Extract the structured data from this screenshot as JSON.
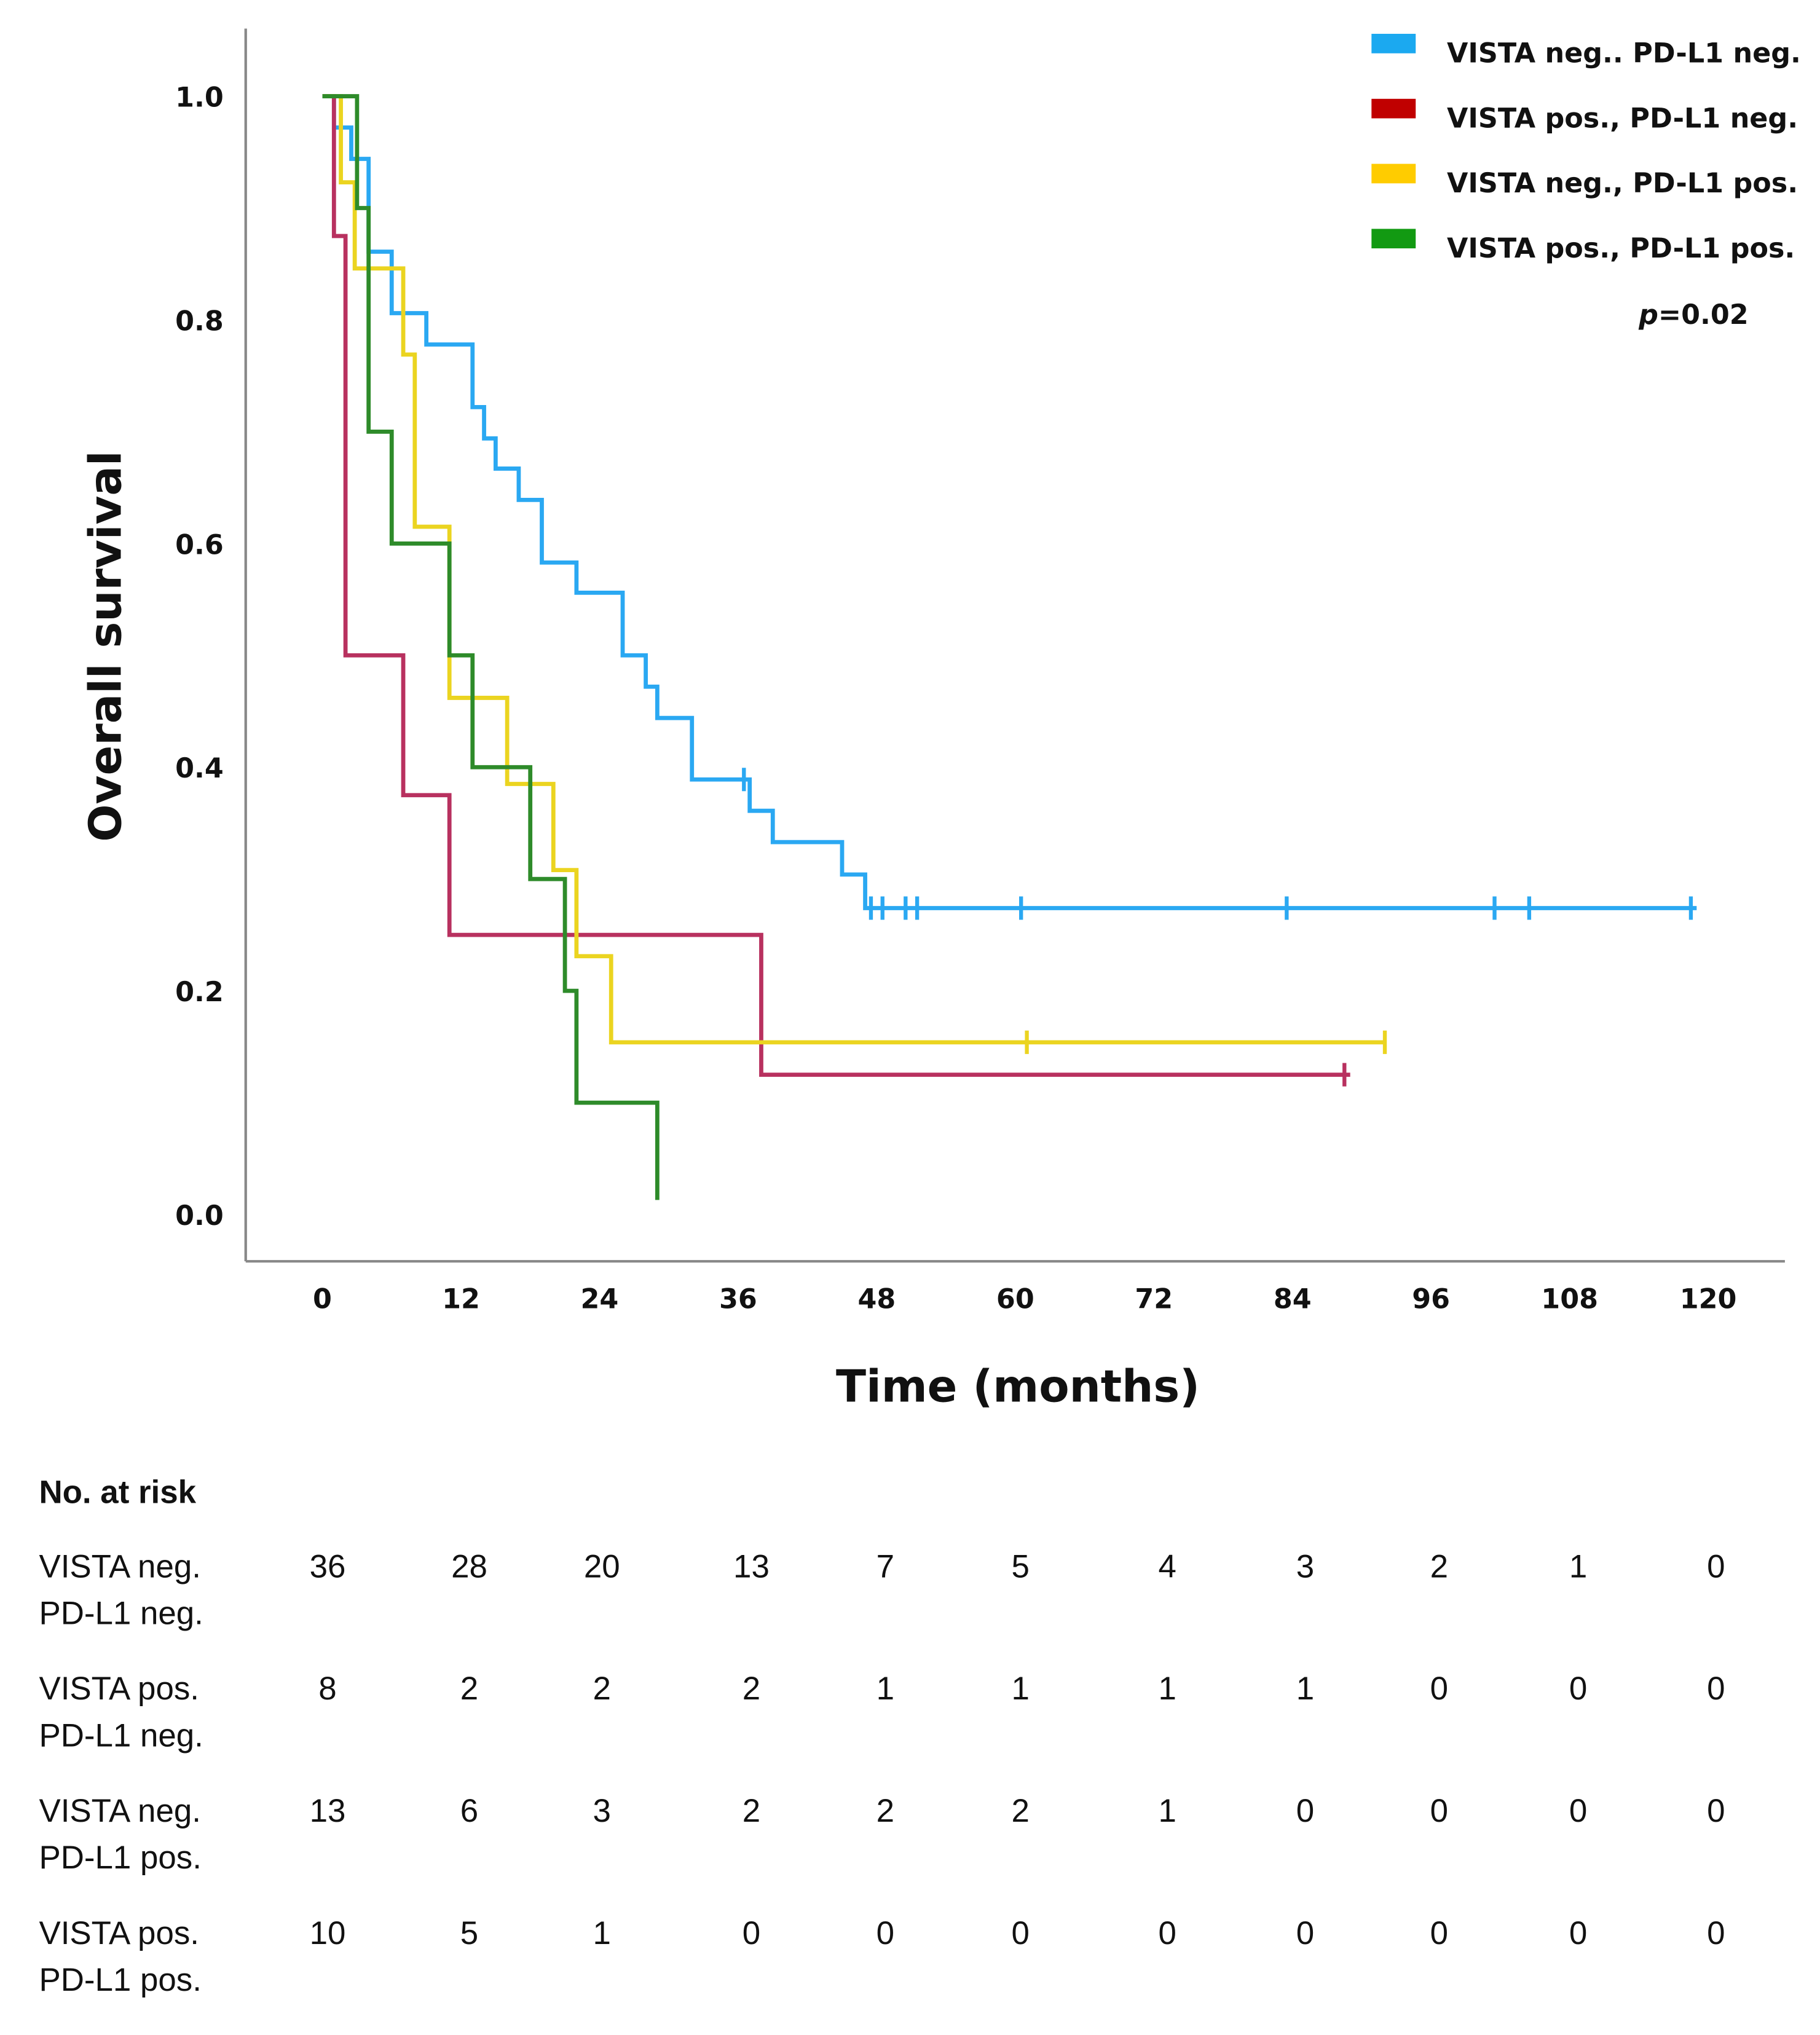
{
  "chart_data": {
    "type": "line",
    "subtype": "kaplan-meier",
    "title": "",
    "xlabel": "Time (months)",
    "ylabel": "Overall survival",
    "xlim": [
      0,
      120
    ],
    "ylim": [
      0,
      1.0
    ],
    "xticks": [
      "0",
      "12",
      "24",
      "36",
      "48",
      "60",
      "72",
      "84",
      "96",
      "108",
      "120"
    ],
    "xtick_values": [
      0,
      12,
      24,
      36,
      48,
      60,
      72,
      84,
      96,
      108,
      120
    ],
    "yticks": [
      "0.0",
      "0.2",
      "0.4",
      "0.6",
      "0.8",
      "1.0"
    ],
    "ytick_values": [
      0,
      0.2,
      0.4,
      0.6,
      0.8,
      1.0
    ],
    "grid": false,
    "legend_position": "top-right",
    "p_value_label": "p",
    "p_value_text": "=0.02",
    "series": [
      {
        "name": "VISTA neg.. PD-L1 neg.",
        "color": "#2AA8F2",
        "legend_color": "#1BA9F0",
        "steps": [
          [
            0,
            1.0
          ],
          [
            1,
            0.972
          ],
          [
            2.5,
            0.944
          ],
          [
            4,
            0.861
          ],
          [
            6,
            0.806
          ],
          [
            9,
            0.778
          ],
          [
            13,
            0.722
          ],
          [
            14,
            0.694
          ],
          [
            15,
            0.667
          ],
          [
            17,
            0.639
          ],
          [
            19,
            0.583
          ],
          [
            22,
            0.556
          ],
          [
            26,
            0.5
          ],
          [
            28,
            0.472
          ],
          [
            29,
            0.444
          ],
          [
            32,
            0.389
          ],
          [
            37,
            0.361
          ],
          [
            39,
            0.333
          ],
          [
            45,
            0.304
          ],
          [
            47,
            0.274
          ]
        ],
        "end": 119,
        "censored": [
          36.5,
          47.5,
          48.5,
          50.5,
          51.5,
          60.5,
          83.5,
          101.5,
          104.5,
          118.5
        ]
      },
      {
        "name": "VISTA pos., PD-L1 neg.",
        "color": "#B8315F",
        "legend_color": "#C00000",
        "steps": [
          [
            0,
            1.0
          ],
          [
            1,
            0.875
          ],
          [
            2,
            0.5
          ],
          [
            7,
            0.375
          ],
          [
            11,
            0.25
          ],
          [
            38,
            0.125
          ]
        ],
        "end": 89,
        "censored": [
          88.5
        ]
      },
      {
        "name": "VISTA neg., PD-L1 pos.",
        "color": "#EBD420",
        "legend_color": "#FFCC00",
        "steps": [
          [
            0,
            1.0
          ],
          [
            1.6,
            0.923
          ],
          [
            2.8,
            0.846
          ],
          [
            7,
            0.769
          ],
          [
            8,
            0.615
          ],
          [
            11,
            0.462
          ],
          [
            16,
            0.385
          ],
          [
            20,
            0.308
          ],
          [
            22,
            0.231
          ],
          [
            25,
            0.154
          ]
        ],
        "end": 92,
        "censored": [
          61,
          92
        ]
      },
      {
        "name": "VISTA pos., PD-L1 pos.",
        "color": "#2E8B2A",
        "legend_color": "#129A12",
        "steps": [
          [
            0,
            1.0
          ],
          [
            3,
            0.9
          ],
          [
            4,
            0.7
          ],
          [
            6,
            0.6
          ],
          [
            11,
            0.5
          ],
          [
            13,
            0.4
          ],
          [
            18,
            0.3
          ],
          [
            21,
            0.2
          ],
          [
            22,
            0.1
          ],
          [
            29,
            0.013
          ]
        ],
        "end": 29,
        "censored": []
      }
    ],
    "risk_table": {
      "title": "No. at risk",
      "rows": [
        {
          "label_line1": "VISTA neg.",
          "label_line2": "PD-L1 neg.",
          "values": [
            "36",
            "28",
            "20",
            "13",
            "7",
            "5",
            "4",
            "3",
            "2",
            "1",
            "0"
          ]
        },
        {
          "label_line1": "VISTA pos.",
          "label_line2": "PD-L1 neg.",
          "values": [
            "8",
            "2",
            "2",
            "2",
            "1",
            "1",
            "1",
            "1",
            "0",
            "0",
            "0"
          ]
        },
        {
          "label_line1": "VISTA neg.",
          "label_line2": "PD-L1 pos.",
          "values": [
            "13",
            "6",
            "3",
            "2",
            "2",
            "2",
            "1",
            "0",
            "0",
            "0",
            "0"
          ]
        },
        {
          "label_line1": "VISTA pos.",
          "label_line2": "PD-L1 pos.",
          "values": [
            "10",
            "5",
            "1",
            "0",
            "0",
            "0",
            "0",
            "0",
            "0",
            "0",
            "0"
          ]
        }
      ]
    }
  }
}
